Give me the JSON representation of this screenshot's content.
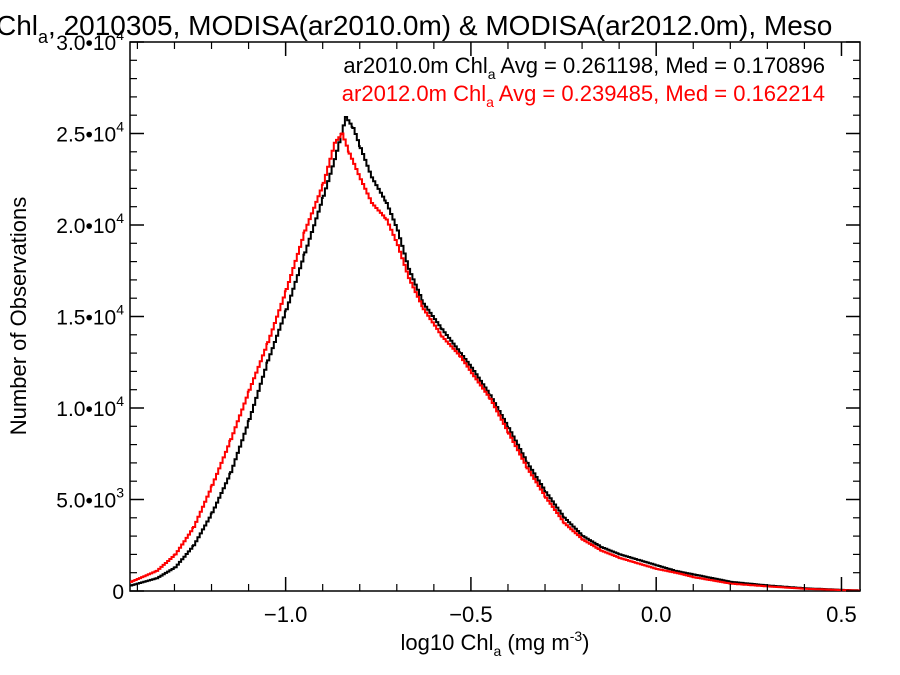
{
  "chart_data": {
    "type": "line",
    "title": {
      "prefix": "Chl",
      "sub": "a",
      "rest": ", 2010305, MODISA(ar2010.0m) & MODISA(ar2012.0m), Meso"
    },
    "xlabel": {
      "prefix": "log10 Chl",
      "sub": "a",
      "mid": " (mg m",
      "sup": "-3",
      "suffix": ")"
    },
    "ylabel": "Number of Observations",
    "xlim": [
      -1.42,
      0.55
    ],
    "ylim": [
      0,
      30000
    ],
    "x_ticks": [
      {
        "value": -1.0,
        "label": "−1.0"
      },
      {
        "value": -0.5,
        "label": "−0.5"
      },
      {
        "value": 0.0,
        "label": "0.0"
      },
      {
        "value": 0.5,
        "label": "0.5"
      }
    ],
    "y_ticks": [
      {
        "value": 0,
        "mant": "0",
        "exp": ""
      },
      {
        "value": 5000,
        "mant": "5.0•10",
        "exp": "3"
      },
      {
        "value": 10000,
        "mant": "1.0•10",
        "exp": "4"
      },
      {
        "value": 15000,
        "mant": "1.5•10",
        "exp": "4"
      },
      {
        "value": 20000,
        "mant": "2.0•10",
        "exp": "4"
      },
      {
        "value": 25000,
        "mant": "2.5•10",
        "exp": "4"
      },
      {
        "value": 30000,
        "mant": "3.0•10",
        "exp": "4"
      }
    ],
    "legend": [
      {
        "prefix": "ar2010.0m Chl",
        "sub": "a",
        "rest": " Avg = 0.261198, Med = 0.170896",
        "color": "#000000"
      },
      {
        "prefix": "ar2012.0m Chl",
        "sub": "a",
        "rest": " Avg = 0.239485, Med = 0.162214",
        "color": "#ff0000"
      }
    ],
    "legend_position": "top-right",
    "grid": false,
    "series": [
      {
        "color": "#000000",
        "points": [
          [
            -1.42,
            300
          ],
          [
            -1.35,
            700
          ],
          [
            -1.3,
            1300
          ],
          [
            -1.25,
            2500
          ],
          [
            -1.2,
            4300
          ],
          [
            -1.15,
            6500
          ],
          [
            -1.1,
            9400
          ],
          [
            -1.05,
            12600
          ],
          [
            -1.0,
            15400
          ],
          [
            -0.95,
            18500
          ],
          [
            -0.9,
            21600
          ],
          [
            -0.87,
            23600
          ],
          [
            -0.84,
            25900
          ],
          [
            -0.82,
            25300
          ],
          [
            -0.8,
            24200
          ],
          [
            -0.77,
            22600
          ],
          [
            -0.73,
            21200
          ],
          [
            -0.7,
            19700
          ],
          [
            -0.67,
            17600
          ],
          [
            -0.63,
            15700
          ],
          [
            -0.58,
            14300
          ],
          [
            -0.53,
            13000
          ],
          [
            -0.5,
            12200
          ],
          [
            -0.45,
            10700
          ],
          [
            -0.4,
            8900
          ],
          [
            -0.35,
            7000
          ],
          [
            -0.3,
            5400
          ],
          [
            -0.25,
            4000
          ],
          [
            -0.2,
            3000
          ],
          [
            -0.15,
            2400
          ],
          [
            -0.1,
            2000
          ],
          [
            -0.05,
            1700
          ],
          [
            0.0,
            1400
          ],
          [
            0.05,
            1100
          ],
          [
            0.1,
            900
          ],
          [
            0.2,
            500
          ],
          [
            0.3,
            300
          ],
          [
            0.4,
            150
          ],
          [
            0.5,
            60
          ],
          [
            0.55,
            30
          ]
        ]
      },
      {
        "color": "#ff0000",
        "points": [
          [
            -1.42,
            500
          ],
          [
            -1.35,
            1100
          ],
          [
            -1.3,
            2000
          ],
          [
            -1.25,
            3500
          ],
          [
            -1.2,
            5800
          ],
          [
            -1.15,
            8300
          ],
          [
            -1.1,
            11000
          ],
          [
            -1.05,
            13600
          ],
          [
            -1.0,
            16500
          ],
          [
            -0.95,
            19700
          ],
          [
            -0.9,
            22300
          ],
          [
            -0.87,
            24500
          ],
          [
            -0.85,
            25000
          ],
          [
            -0.83,
            23900
          ],
          [
            -0.8,
            22500
          ],
          [
            -0.77,
            21200
          ],
          [
            -0.73,
            20300
          ],
          [
            -0.7,
            18900
          ],
          [
            -0.67,
            17100
          ],
          [
            -0.63,
            15400
          ],
          [
            -0.58,
            13900
          ],
          [
            -0.53,
            12800
          ],
          [
            -0.5,
            11900
          ],
          [
            -0.45,
            10500
          ],
          [
            -0.4,
            8600
          ],
          [
            -0.35,
            6700
          ],
          [
            -0.3,
            5100
          ],
          [
            -0.25,
            3700
          ],
          [
            -0.2,
            2800
          ],
          [
            -0.15,
            2200
          ],
          [
            -0.1,
            1800
          ],
          [
            -0.05,
            1500
          ],
          [
            0.0,
            1200
          ],
          [
            0.05,
            1000
          ],
          [
            0.1,
            750
          ],
          [
            0.2,
            400
          ],
          [
            0.3,
            250
          ],
          [
            0.4,
            120
          ],
          [
            0.5,
            50
          ],
          [
            0.55,
            25
          ]
        ]
      }
    ]
  }
}
